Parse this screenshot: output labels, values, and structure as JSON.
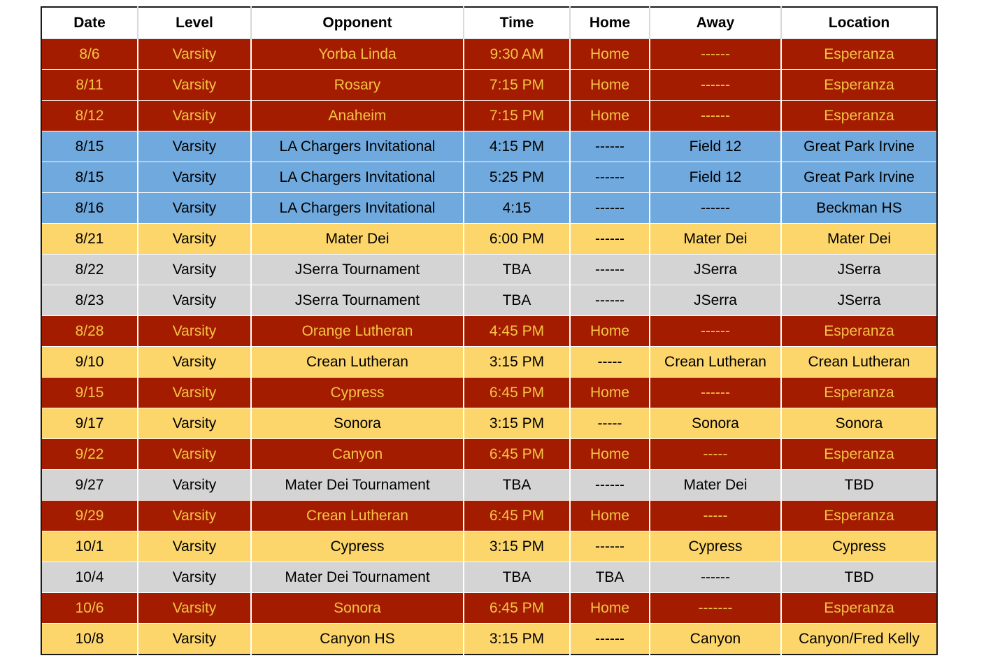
{
  "columns": [
    "Date",
    "Level",
    "Opponent",
    "Time",
    "Home",
    "Away",
    "Location"
  ],
  "colors": {
    "home_game_bg": "#a31c00",
    "home_game_text": "#f6c445",
    "invitational_bg": "#6fa9dd",
    "away_game_bg": "#fdd66b",
    "tournament_bg": "#d4d4d4"
  },
  "rows": [
    {
      "type": "home",
      "cells": [
        "8/6",
        "Varsity",
        "Yorba Linda",
        "9:30 AM",
        "Home",
        "------",
        "Esperanza"
      ]
    },
    {
      "type": "home",
      "cells": [
        "8/11",
        "Varsity",
        "Rosary",
        "7:15 PM",
        "Home",
        "------",
        "Esperanza"
      ]
    },
    {
      "type": "home",
      "cells": [
        "8/12",
        "Varsity",
        "Anaheim",
        "7:15 PM",
        "Home",
        "------",
        "Esperanza"
      ]
    },
    {
      "type": "tourney",
      "cells": [
        "8/15",
        "Varsity",
        "LA Chargers Invitational",
        "4:15 PM",
        "------",
        "Field 12",
        "Great Park Irvine"
      ]
    },
    {
      "type": "tourney",
      "cells": [
        "8/15",
        "Varsity",
        "LA Chargers Invitational",
        "5:25 PM",
        "------",
        "Field 12",
        "Great Park Irvine"
      ]
    },
    {
      "type": "tourney",
      "cells": [
        "8/16",
        "Varsity",
        "LA Chargers Invitational",
        "4:15",
        "------",
        "------",
        "Beckman HS"
      ]
    },
    {
      "type": "away",
      "cells": [
        "8/21",
        "Varsity",
        "Mater Dei",
        "6:00 PM",
        "------",
        "Mater Dei",
        "Mater Dei"
      ]
    },
    {
      "type": "other",
      "cells": [
        "8/22",
        "Varsity",
        "JSerra Tournament",
        "TBA",
        "------",
        "JSerra",
        "JSerra"
      ]
    },
    {
      "type": "other",
      "cells": [
        "8/23",
        "Varsity",
        "JSerra Tournament",
        "TBA",
        "------",
        "JSerra",
        "JSerra"
      ]
    },
    {
      "type": "home",
      "cells": [
        "8/28",
        "Varsity",
        "Orange Lutheran",
        "4:45 PM",
        "Home",
        "------",
        "Esperanza"
      ]
    },
    {
      "type": "away",
      "cells": [
        "9/10",
        "Varsity",
        "Crean Lutheran",
        "3:15 PM",
        "-----",
        "Crean Lutheran",
        "Crean Lutheran"
      ]
    },
    {
      "type": "home",
      "cells": [
        "9/15",
        "Varsity",
        "Cypress",
        "6:45 PM",
        "Home",
        "------",
        "Esperanza"
      ]
    },
    {
      "type": "away",
      "cells": [
        "9/17",
        "Varsity",
        "Sonora",
        "3:15 PM",
        "-----",
        "Sonora",
        "Sonora"
      ]
    },
    {
      "type": "home",
      "cells": [
        "9/22",
        "Varsity",
        "Canyon",
        "6:45 PM",
        "Home",
        "-----",
        "Esperanza"
      ]
    },
    {
      "type": "other",
      "cells": [
        "9/27",
        "Varsity",
        "Mater Dei Tournament",
        "TBA",
        "------",
        "Mater Dei",
        "TBD"
      ]
    },
    {
      "type": "home",
      "cells": [
        "9/29",
        "Varsity",
        "Crean Lutheran",
        "6:45 PM",
        "Home",
        "-----",
        "Esperanza"
      ]
    },
    {
      "type": "away",
      "cells": [
        "10/1",
        "Varsity",
        "Cypress",
        "3:15 PM",
        "------",
        "Cypress",
        "Cypress"
      ]
    },
    {
      "type": "other",
      "cells": [
        "10/4",
        "Varsity",
        "Mater Dei Tournament",
        "TBA",
        "TBA",
        "------",
        "TBD"
      ]
    },
    {
      "type": "home",
      "cells": [
        "10/6",
        "Varsity",
        "Sonora",
        "6:45 PM",
        "Home",
        "-------",
        "Esperanza"
      ]
    },
    {
      "type": "away",
      "cells": [
        "10/8",
        "Varsity",
        "Canyon HS",
        "3:15 PM",
        "------",
        "Canyon",
        "Canyon/Fred Kelly"
      ]
    }
  ]
}
